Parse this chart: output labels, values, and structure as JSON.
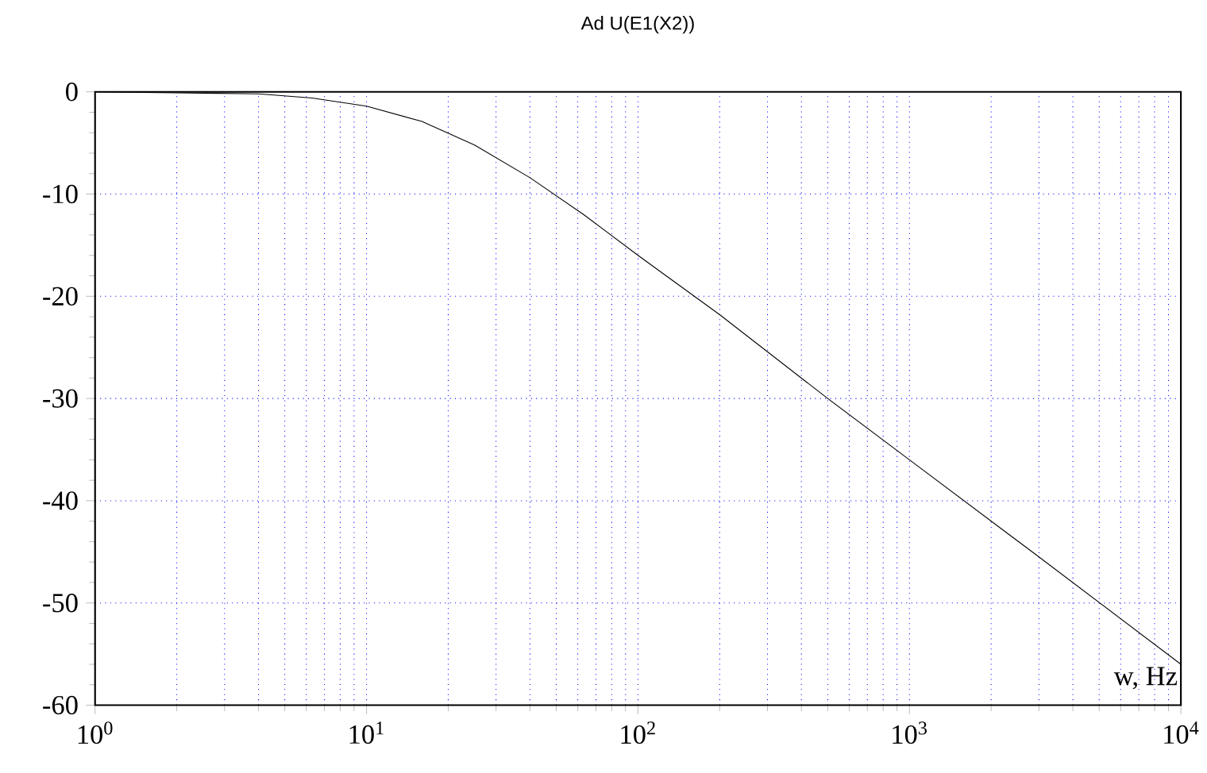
{
  "chart_data": {
    "type": "line",
    "title": "Ad U(E1(X2))",
    "xlabel": "w, Hz",
    "log": "x",
    "x": [
      1,
      2,
      4,
      6.3,
      10,
      16,
      25,
      40,
      63,
      100,
      200,
      500,
      1000,
      3000,
      10000
    ],
    "series": [
      {
        "color": "#000000",
        "values": [
          0,
          -0.1,
          -0.2,
          -0.6,
          -1.4,
          -2.9,
          -5.2,
          -8.4,
          -12,
          -16,
          -21.8,
          -30,
          -36,
          -45.5,
          -56
        ]
      }
    ],
    "xlim": [
      1,
      10000
    ],
    "ylim": [
      -60,
      0
    ],
    "xticks": [
      {
        "value": 1,
        "label": "10$^{0}$"
      },
      {
        "value": 10,
        "label": "10$^{1}$"
      },
      {
        "value": 100,
        "label": "10$^{2}$"
      },
      {
        "value": 1000,
        "label": "10$^{3}$"
      },
      {
        "value": 10000,
        "label": "10$^{4}$"
      }
    ],
    "yticks": [
      -60,
      -50,
      -40,
      -30,
      -20,
      -10,
      0
    ],
    "grid": true,
    "marker": "none",
    "line_style": "solid"
  }
}
